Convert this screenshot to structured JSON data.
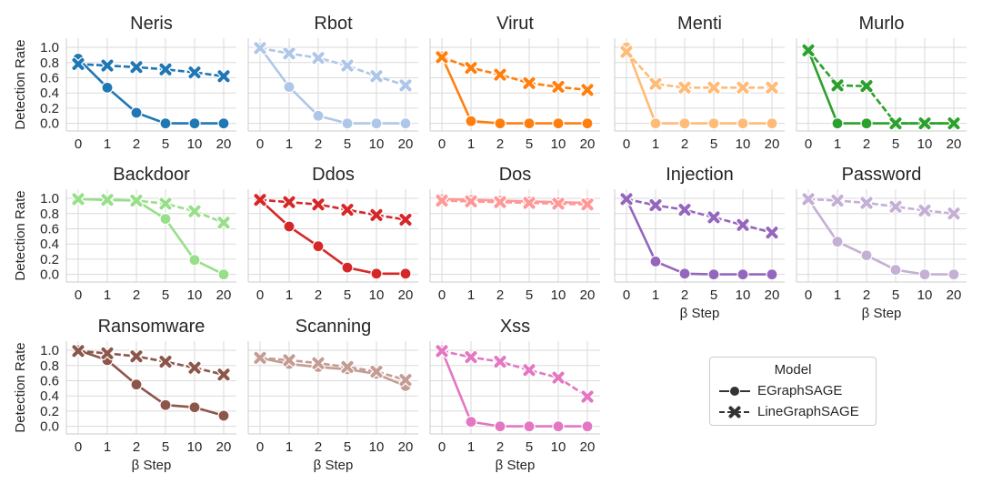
{
  "chart_data": {
    "type": "line",
    "layout": "grid of small multiples, 3 rows x 5 columns",
    "shared_ylabel": "Detection Rate",
    "shared_xlabel": "β Step",
    "x_ticks": [
      "0",
      "1",
      "2",
      "5",
      "10",
      "20"
    ],
    "y_ticks": [
      "0.0",
      "0.2",
      "0.4",
      "0.6",
      "0.8",
      "1.0"
    ],
    "ylim": [
      -0.1,
      1.12
    ],
    "grid": true,
    "legend": {
      "title": "Model",
      "placement": "bottom-right",
      "entries": [
        {
          "name": "EGraphSAGE",
          "marker": "circle",
          "line": "solid"
        },
        {
          "name": "LineGraphSAGE",
          "marker": "x",
          "line": "dashed"
        }
      ]
    },
    "panels": [
      {
        "title": "Neris",
        "color": "#1f77b4",
        "series": [
          {
            "name": "EGraphSAGE",
            "values": [
              0.85,
              0.47,
              0.14,
              0.0,
              0.0,
              0.0
            ]
          },
          {
            "name": "LineGraphSAGE",
            "values": [
              0.78,
              0.76,
              0.74,
              0.71,
              0.67,
              0.62
            ]
          }
        ]
      },
      {
        "title": "Rbot",
        "color": "#aec7e8",
        "series": [
          {
            "name": "EGraphSAGE",
            "values": [
              1.0,
              0.48,
              0.1,
              0.0,
              0.0,
              0.0
            ]
          },
          {
            "name": "LineGraphSAGE",
            "values": [
              0.99,
              0.92,
              0.86,
              0.76,
              0.62,
              0.5
            ]
          }
        ]
      },
      {
        "title": "Virut",
        "color": "#ff7f0e",
        "series": [
          {
            "name": "EGraphSAGE",
            "values": [
              0.88,
              0.03,
              0.0,
              0.0,
              0.0,
              0.0
            ]
          },
          {
            "name": "LineGraphSAGE",
            "values": [
              0.87,
              0.73,
              0.64,
              0.53,
              0.48,
              0.44
            ]
          }
        ]
      },
      {
        "title": "Menti",
        "color": "#ffbb78",
        "series": [
          {
            "name": "EGraphSAGE",
            "values": [
              1.0,
              0.0,
              0.0,
              0.0,
              0.0,
              0.0
            ]
          },
          {
            "name": "LineGraphSAGE",
            "values": [
              0.94,
              0.52,
              0.47,
              0.47,
              0.47,
              0.47
            ]
          }
        ]
      },
      {
        "title": "Murlo",
        "color": "#2ca02c",
        "series": [
          {
            "name": "EGraphSAGE",
            "values": [
              0.96,
              0.0,
              0.0,
              0.0,
              0.0,
              0.0
            ]
          },
          {
            "name": "LineGraphSAGE",
            "values": [
              0.96,
              0.5,
              0.49,
              0.0,
              0.0,
              0.0
            ]
          }
        ]
      },
      {
        "title": "Backdoor",
        "color": "#98df8a",
        "series": [
          {
            "name": "EGraphSAGE",
            "values": [
              0.99,
              0.98,
              0.97,
              0.73,
              0.19,
              0.0
            ]
          },
          {
            "name": "LineGraphSAGE",
            "values": [
              0.99,
              0.98,
              0.97,
              0.93,
              0.83,
              0.68
            ]
          }
        ]
      },
      {
        "title": "Ddos",
        "color": "#d62728",
        "series": [
          {
            "name": "EGraphSAGE",
            "values": [
              0.98,
              0.63,
              0.37,
              0.09,
              0.01,
              0.01
            ]
          },
          {
            "name": "LineGraphSAGE",
            "values": [
              0.98,
              0.95,
              0.92,
              0.85,
              0.78,
              0.72
            ]
          }
        ]
      },
      {
        "title": "Dos",
        "color": "#ff9896",
        "series": [
          {
            "name": "EGraphSAGE",
            "values": [
              0.99,
              0.98,
              0.97,
              0.96,
              0.95,
              0.94
            ]
          },
          {
            "name": "LineGraphSAGE",
            "values": [
              0.97,
              0.96,
              0.95,
              0.94,
              0.93,
              0.92
            ]
          }
        ]
      },
      {
        "title": "Injection",
        "color": "#9467bd",
        "series": [
          {
            "name": "EGraphSAGE",
            "values": [
              0.99,
              0.17,
              0.01,
              0.0,
              0.0,
              0.0
            ]
          },
          {
            "name": "LineGraphSAGE",
            "values": [
              0.99,
              0.91,
              0.85,
              0.75,
              0.65,
              0.55
            ]
          }
        ]
      },
      {
        "title": "Password",
        "color": "#c5b0d5",
        "series": [
          {
            "name": "EGraphSAGE",
            "values": [
              0.99,
              0.43,
              0.25,
              0.06,
              0.0,
              0.0
            ]
          },
          {
            "name": "LineGraphSAGE",
            "values": [
              0.99,
              0.97,
              0.94,
              0.89,
              0.84,
              0.8
            ]
          }
        ]
      },
      {
        "title": "Ransomware",
        "color": "#8c564b",
        "series": [
          {
            "name": "EGraphSAGE",
            "values": [
              1.0,
              0.87,
              0.55,
              0.28,
              0.25,
              0.14
            ]
          },
          {
            "name": "LineGraphSAGE",
            "values": [
              0.99,
              0.96,
              0.92,
              0.85,
              0.77,
              0.68
            ]
          }
        ]
      },
      {
        "title": "Scanning",
        "color": "#c49c94",
        "series": [
          {
            "name": "EGraphSAGE",
            "values": [
              0.9,
              0.82,
              0.78,
              0.75,
              0.69,
              0.53
            ]
          },
          {
            "name": "LineGraphSAGE",
            "values": [
              0.9,
              0.87,
              0.83,
              0.78,
              0.72,
              0.61
            ]
          }
        ]
      },
      {
        "title": "Xss",
        "color": "#e377c2",
        "series": [
          {
            "name": "EGraphSAGE",
            "values": [
              1.0,
              0.06,
              0.0,
              0.0,
              0.0,
              0.0
            ]
          },
          {
            "name": "LineGraphSAGE",
            "values": [
              0.99,
              0.91,
              0.85,
              0.74,
              0.64,
              0.39
            ]
          }
        ]
      }
    ]
  }
}
